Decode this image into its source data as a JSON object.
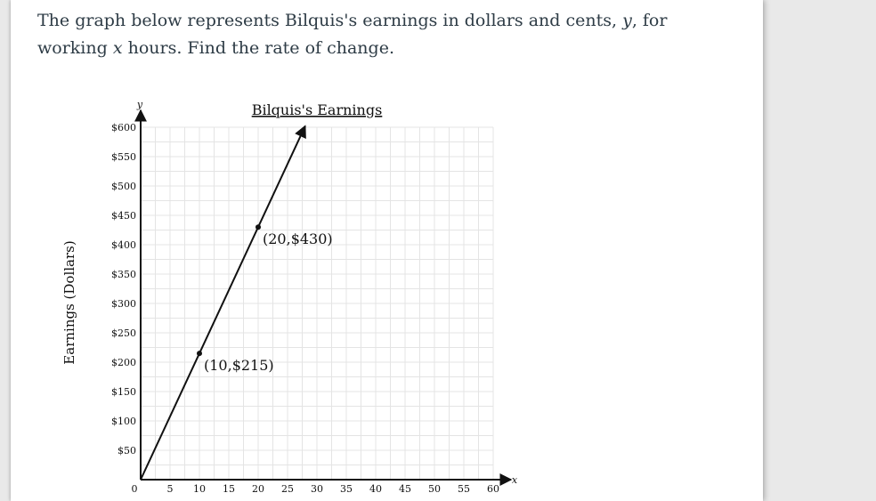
{
  "question": {
    "part1": "The graph below represents Bilquis's earnings in dollars and cents, ",
    "var_y": "y",
    "part2": ", for working ",
    "var_x": "x",
    "part3": " hours. Find the rate of change."
  },
  "chart_data": {
    "type": "line",
    "title": "Bilquis's Earnings",
    "xlabel": "",
    "ylabel": "Earnings (Dollars)",
    "x_axis_letter": "x",
    "y_axis_letter": "y",
    "xlim": [
      0,
      60
    ],
    "ylim": [
      0,
      600
    ],
    "grid": true,
    "origin_label": "0",
    "x_ticks": [
      {
        "value": 5,
        "label": "5"
      },
      {
        "value": 10,
        "label": "10"
      },
      {
        "value": 15,
        "label": "15"
      },
      {
        "value": 20,
        "label": "20"
      },
      {
        "value": 25,
        "label": "25"
      },
      {
        "value": 30,
        "label": "30"
      },
      {
        "value": 35,
        "label": "35"
      },
      {
        "value": 40,
        "label": "40"
      },
      {
        "value": 45,
        "label": "45"
      },
      {
        "value": 50,
        "label": "50"
      },
      {
        "value": 55,
        "label": "55"
      },
      {
        "value": 60,
        "label": "60"
      }
    ],
    "y_ticks": [
      {
        "value": 50,
        "label": "$50"
      },
      {
        "value": 100,
        "label": "$100"
      },
      {
        "value": 150,
        "label": "$150"
      },
      {
        "value": 200,
        "label": "$200"
      },
      {
        "value": 250,
        "label": "$250"
      },
      {
        "value": 300,
        "label": "$300"
      },
      {
        "value": 350,
        "label": "$350"
      },
      {
        "value": 400,
        "label": "$400"
      },
      {
        "value": 450,
        "label": "$450"
      },
      {
        "value": 500,
        "label": "$500"
      },
      {
        "value": 550,
        "label": "$550"
      },
      {
        "value": 600,
        "label": "$600"
      }
    ],
    "line": {
      "from": {
        "x": 0,
        "y": 0
      },
      "to": {
        "x": 28,
        "y": 602
      }
    },
    "points": [
      {
        "x": 10,
        "y": 215,
        "label": "(10,$215)"
      },
      {
        "x": 20,
        "y": 430,
        "label": "(20,$430)"
      }
    ]
  }
}
